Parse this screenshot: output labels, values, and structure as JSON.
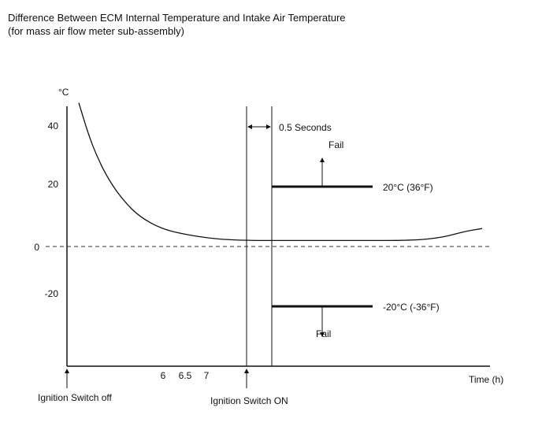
{
  "chart_data": {
    "type": "line",
    "title": "Difference Between ECM Internal Temperature and Intake Air Temperature",
    "subtitle": "(for mass air flow meter sub-assembly)",
    "ylabel": "°C",
    "xlabel": "Time (h)",
    "yticks": [
      "40",
      "20",
      "0",
      "-20"
    ],
    "xticks": [
      "6",
      "6.5",
      "7"
    ],
    "ylim": [
      -42,
      42
    ],
    "grid": false,
    "curve": [
      {
        "t": 0.0,
        "y": 48
      },
      {
        "t": 0.3,
        "y": 38
      },
      {
        "t": 0.6,
        "y": 30
      },
      {
        "t": 1.0,
        "y": 22
      },
      {
        "t": 1.5,
        "y": 15
      },
      {
        "t": 2.0,
        "y": 10
      },
      {
        "t": 2.7,
        "y": 6
      },
      {
        "t": 3.5,
        "y": 4
      },
      {
        "t": 4.5,
        "y": 2.5
      },
      {
        "t": 5.5,
        "y": 2
      },
      {
        "t": 7.0,
        "y": 2
      },
      {
        "t": 9.0,
        "y": 2
      },
      {
        "t": 11.0,
        "y": 2
      },
      {
        "t": 12.0,
        "y": 3
      },
      {
        "t": 12.7,
        "y": 5
      },
      {
        "t": 13.3,
        "y": 6
      }
    ],
    "thresholds": [
      {
        "value": 20,
        "label": "20°C (36°F)",
        "fail_label": "Fail",
        "direction": "up"
      },
      {
        "value": -20,
        "label": "-20°C (-36°F)",
        "fail_label": "Fail",
        "direction": "down"
      }
    ],
    "events": {
      "ignition_off": "Ignition Switch off",
      "ignition_on": "Ignition Switch ON",
      "delay": "0.5 Seconds"
    }
  }
}
